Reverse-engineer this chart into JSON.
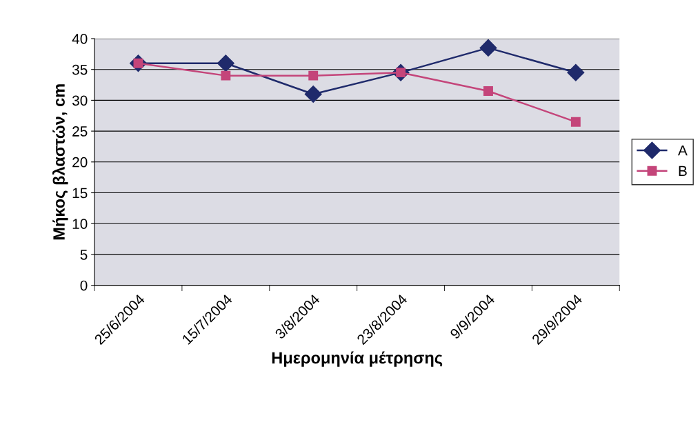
{
  "chart_data": {
    "type": "line",
    "xlabel": "Ημερομηνία μέτρησης",
    "ylabel": "Μήκος βλαστών, cm",
    "categories": [
      "25/6/2004",
      "15/7/2004",
      "3/8/2004",
      "23/8/2004",
      "9/9/2004",
      "29/9/2004"
    ],
    "series": [
      {
        "name": "A",
        "color": "#1f2a6b",
        "marker": "diamond",
        "values": [
          36,
          36,
          31,
          34.5,
          38.5,
          34.5
        ]
      },
      {
        "name": "B",
        "color": "#c4457a",
        "marker": "square",
        "values": [
          36,
          34,
          34,
          34.5,
          31.5,
          26.5
        ]
      }
    ],
    "ylim": [
      0,
      40
    ],
    "yticks": [
      0,
      5,
      10,
      15,
      20,
      25,
      30,
      35,
      40
    ],
    "grid": "y",
    "legend": "right",
    "line_style": "solid"
  }
}
